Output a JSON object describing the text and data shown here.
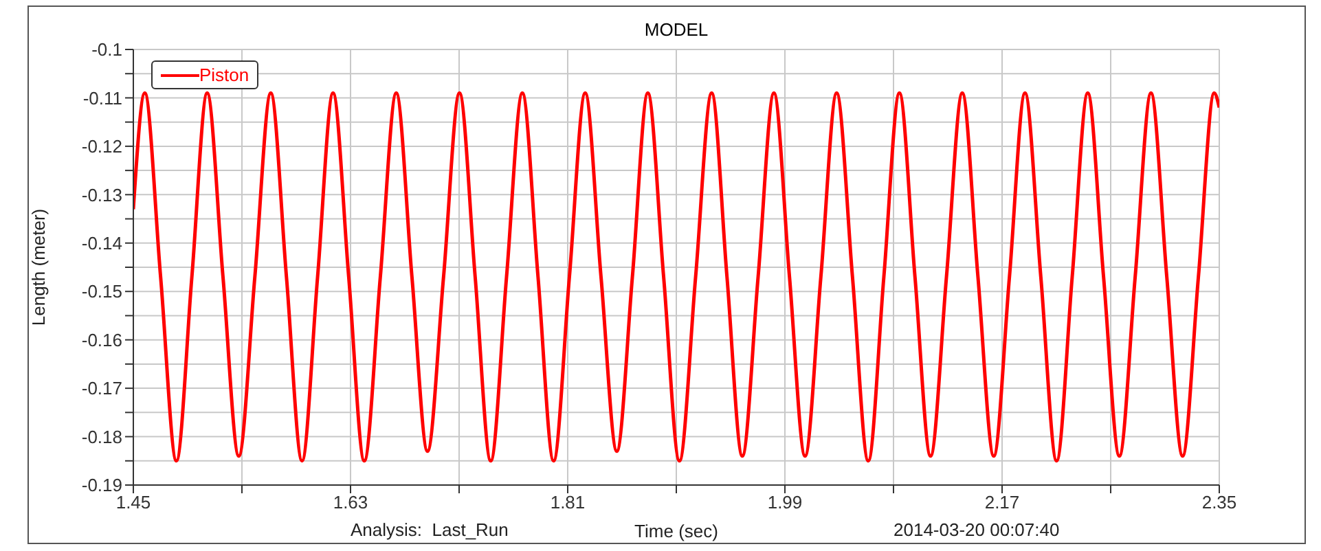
{
  "chart_data": {
    "type": "line",
    "title": "MODEL",
    "xlabel": "Time (sec)",
    "ylabel": "Length (meter)",
    "annotations": [
      "Analysis:  Last_Run",
      "2014-03-20 00:07:40"
    ],
    "xlim": [
      1.45,
      2.35
    ],
    "ylim": [
      -0.19,
      -0.1
    ],
    "xticks": [
      1.45,
      {
        "value": 1.54,
        "label": null
      },
      1.63,
      {
        "value": 1.72,
        "label": null
      },
      1.81,
      {
        "value": 1.9,
        "label": null
      },
      1.99,
      {
        "value": 2.08,
        "label": null
      },
      2.17,
      {
        "value": 2.26,
        "label": null
      },
      2.35
    ],
    "yticks": [
      -0.19,
      {
        "value": -0.185,
        "label": null
      },
      -0.18,
      {
        "value": -0.175,
        "label": null
      },
      -0.17,
      {
        "value": -0.165,
        "label": null
      },
      -0.16,
      {
        "value": -0.155,
        "label": null
      },
      -0.15,
      {
        "value": -0.145,
        "label": null
      },
      -0.14,
      {
        "value": -0.135,
        "label": null
      },
      -0.13,
      {
        "value": -0.125,
        "label": null
      },
      -0.12,
      {
        "value": -0.115,
        "label": null
      },
      -0.11,
      {
        "value": -0.105,
        "label": null
      },
      -0.1
    ],
    "grid": true,
    "legend": "top left",
    "series": [
      {
        "name": "Piston",
        "color": "#ff0000",
        "x": [
          1.45,
          1.4595,
          1.4726,
          1.4857,
          1.4985,
          1.5112,
          1.5243,
          1.5374,
          1.5507,
          1.5639,
          1.5769,
          1.5898,
          1.6027,
          1.6155,
          1.6285,
          1.6414,
          1.6547,
          1.6679,
          1.6809,
          1.6938,
          1.7071,
          1.7203,
          1.7333,
          1.7462,
          1.7593,
          1.7724,
          1.7854,
          1.7983,
          1.8114,
          1.8245,
          1.8376,
          1.8507,
          1.8636,
          1.8764,
          1.8895,
          1.9026,
          1.916,
          1.9293,
          1.942,
          1.9547,
          1.9678,
          1.9809,
          1.9938,
          2.0067,
          2.0198,
          2.0329,
          2.046,
          2.0591,
          2.072,
          2.0849,
          2.0978,
          2.1107,
          2.1239,
          2.137,
          2.15,
          2.1631,
          2.1761,
          2.189,
          2.2021,
          2.2152,
          2.2281,
          2.241,
          2.2541,
          2.2672,
          2.2803,
          2.2934,
          2.3065,
          2.3196,
          2.3327,
          2.3458,
          2.35
        ],
        "values": [
          -0.133,
          -0.109,
          -0.147,
          -0.185,
          -0.147,
          -0.109,
          -0.147,
          -0.184,
          -0.147,
          -0.109,
          -0.147,
          -0.185,
          -0.147,
          -0.109,
          -0.147,
          -0.185,
          -0.147,
          -0.109,
          -0.147,
          -0.183,
          -0.147,
          -0.109,
          -0.147,
          -0.185,
          -0.147,
          -0.109,
          -0.147,
          -0.185,
          -0.147,
          -0.109,
          -0.147,
          -0.183,
          -0.147,
          -0.109,
          -0.147,
          -0.185,
          -0.147,
          -0.109,
          -0.147,
          -0.184,
          -0.147,
          -0.109,
          -0.147,
          -0.184,
          -0.147,
          -0.109,
          -0.147,
          -0.185,
          -0.147,
          -0.109,
          -0.147,
          -0.184,
          -0.147,
          -0.109,
          -0.147,
          -0.184,
          -0.147,
          -0.109,
          -0.147,
          -0.185,
          -0.147,
          -0.109,
          -0.147,
          -0.184,
          -0.147,
          -0.109,
          -0.147,
          -0.184,
          -0.147,
          -0.109,
          -0.112
        ]
      }
    ]
  }
}
